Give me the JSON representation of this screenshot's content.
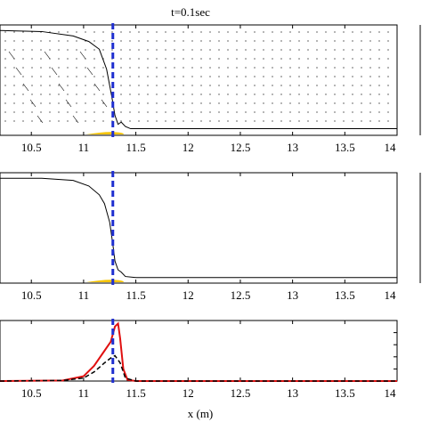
{
  "chart_data": [
    {
      "type": "line",
      "panel": "velocity-field",
      "title": "t=0.1sec",
      "xlabel": "",
      "xlim": [
        10.2,
        14
      ],
      "x_ticks": [
        "10.5",
        "11",
        "11.5",
        "12",
        "12.5",
        "13",
        "13.5",
        "14"
      ],
      "marker_line_x": 11.28,
      "series": [
        {
          "name": "",
          "style": "free-surface",
          "x": [
            10.2,
            10.6,
            10.9,
            11.05,
            11.15,
            11.22,
            11.27,
            11.3,
            11.33,
            11.36,
            11.4,
            11.45,
            14
          ],
          "y": [
            0.95,
            0.94,
            0.9,
            0.85,
            0.78,
            0.6,
            0.35,
            0.18,
            0.1,
            0.12,
            0.08,
            0.06,
            0.06
          ]
        }
      ]
    },
    {
      "type": "line",
      "panel": "free-surface-profile",
      "xlabel": "",
      "xlim": [
        10.2,
        14
      ],
      "x_ticks": [
        "10.5",
        "11",
        "11.5",
        "12",
        "12.5",
        "13",
        "13.5",
        "14"
      ],
      "marker_line_x": 11.28,
      "series": [
        {
          "name": "",
          "style": "free-surface",
          "x": [
            10.2,
            10.6,
            10.9,
            11.05,
            11.15,
            11.2,
            11.25,
            11.28,
            11.3,
            11.33,
            11.36,
            11.4,
            11.5,
            14
          ],
          "y": [
            0.95,
            0.95,
            0.93,
            0.88,
            0.8,
            0.72,
            0.55,
            0.35,
            0.2,
            0.12,
            0.1,
            0.06,
            0.05,
            0.05
          ]
        }
      ]
    },
    {
      "type": "line",
      "panel": "bottom-profile",
      "xlabel": "x (m)",
      "xlim": [
        10.2,
        14
      ],
      "x_ticks": [
        "10.5",
        "11",
        "11.5",
        "12",
        "12.5",
        "13",
        "13.5",
        "14"
      ],
      "marker_line_x": 11.28,
      "series": [
        {
          "name": "",
          "style": "red-solid",
          "x": [
            10.2,
            10.8,
            11.0,
            11.1,
            11.2,
            11.26,
            11.3,
            11.33,
            11.35,
            11.38,
            11.42,
            11.5,
            14
          ],
          "y": [
            0.0,
            0.01,
            0.08,
            0.25,
            0.5,
            0.65,
            0.9,
            0.95,
            0.7,
            0.2,
            0.02,
            0.0,
            0.0
          ]
        },
        {
          "name": "",
          "style": "black-dashed",
          "x": [
            10.2,
            10.8,
            11.0,
            11.1,
            11.2,
            11.26,
            11.3,
            11.35,
            11.4,
            11.5,
            14
          ],
          "y": [
            0.0,
            0.01,
            0.05,
            0.15,
            0.3,
            0.38,
            0.42,
            0.3,
            0.05,
            0.0,
            0.0
          ]
        }
      ]
    }
  ],
  "colors": {
    "marker_line": "#1f2fd0",
    "red_series": "#e01010",
    "sediment": "#f5c400",
    "axis": "#000000"
  }
}
